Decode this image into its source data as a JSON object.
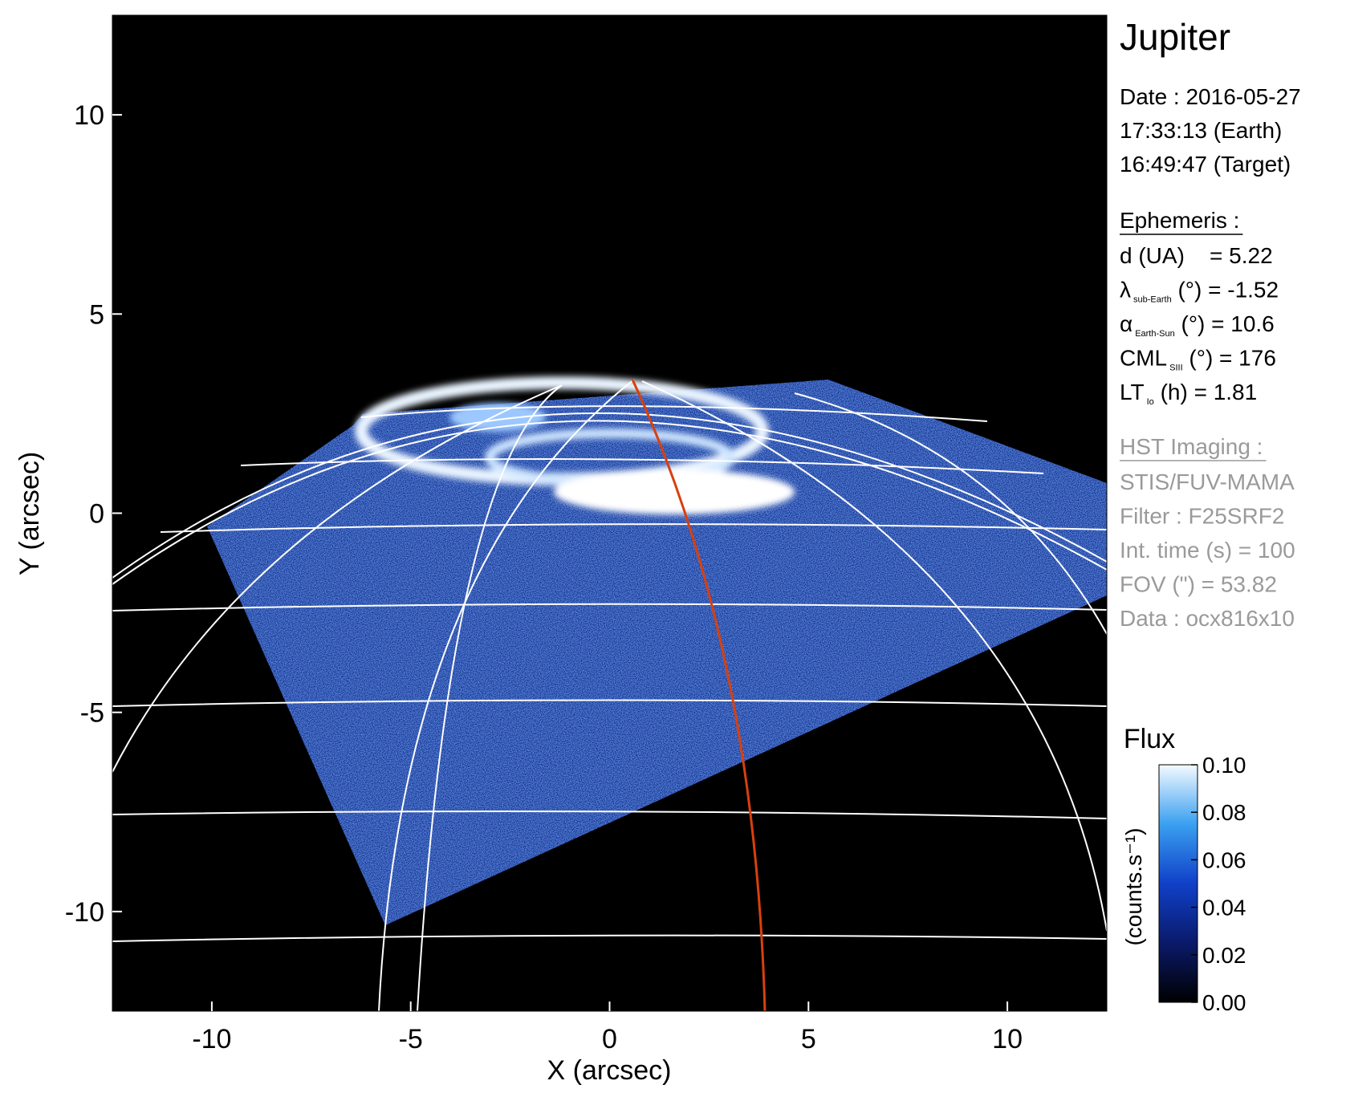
{
  "chart_data": {
    "type": "image",
    "title": "Jupiter",
    "x_label": "X (arcsec)",
    "y_label": "Y (arcsec)",
    "xlim": [
      -12.5,
      12.5
    ],
    "ylim": [
      -12.5,
      12.5
    ],
    "xticks": [
      -10,
      -5,
      0,
      5,
      10
    ],
    "yticks": [
      -10,
      -5,
      0,
      5,
      10
    ],
    "colorbar": {
      "title": "Flux",
      "label": "(counts.s⁻¹)",
      "lim": [
        0,
        0.1
      ],
      "ticks": [
        {
          "value": 0,
          "label": "0.00"
        },
        {
          "value": 0.02,
          "label": "0.02"
        },
        {
          "value": 0.04,
          "label": "0.04"
        },
        {
          "value": 0.06,
          "label": "0.06"
        },
        {
          "value": 0.08,
          "label": "0.08"
        },
        {
          "value": 0.1,
          "label": "0.10"
        }
      ]
    }
  },
  "info": {
    "date": [
      "Date : 2016-05-27",
      "17:33:13 (Earth)",
      "16:49:47 (Target)"
    ],
    "ephemeris": {
      "heading": "Ephemeris :",
      "rows": [
        {
          "main": "d (UA)    = 5.22"
        },
        {
          "main": "λ",
          "sub": "sub-Earth",
          "rest": " (°) = -1.52"
        },
        {
          "main": "α",
          "sub": "Earth-Sun",
          "rest": " (°) = 10.6"
        },
        {
          "main": "CML",
          "sub": "SIII",
          "rest": " (°) = 176"
        },
        {
          "main": "LT",
          "sub": "Io",
          "rest": " (h) = 1.81"
        }
      ]
    },
    "imaging": {
      "heading": "HST Imaging :",
      "rows": [
        "STIS/FUV-MAMA",
        "Filter : F25SRF2",
        "Int. time (s) = 100",
        "FOV (\") = 53.82",
        "Data : ocx816x10"
      ]
    }
  }
}
